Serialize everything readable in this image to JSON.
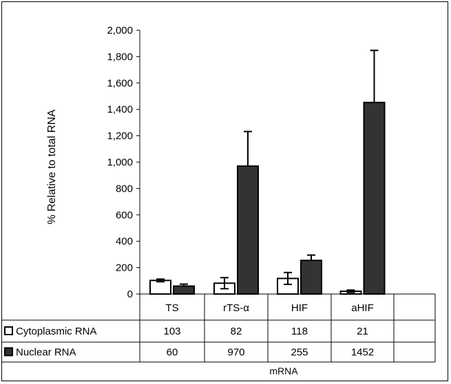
{
  "chart_data": {
    "type": "bar",
    "ylabel": "% Relative to total RNA",
    "xlabel": "mRNA",
    "ylim": [
      0,
      2000
    ],
    "yticks": [
      0,
      200,
      400,
      600,
      800,
      1000,
      1200,
      1400,
      1600,
      1800,
      2000
    ],
    "ytick_labels": [
      "0",
      "200",
      "400",
      "600",
      "800",
      "1,000",
      "1,200",
      "1,400",
      "1,600",
      "1,800",
      "2,000"
    ],
    "categories": [
      "TS",
      "rTS-α",
      "HIF",
      "aHIF"
    ],
    "grid": false,
    "legend": "data-table-left",
    "series": [
      {
        "name": "Cytoplasmic RNA",
        "values": [
          103,
          82,
          118,
          21
        ],
        "errors": [
          10,
          42,
          45,
          9
        ],
        "color": "#ffffff"
      },
      {
        "name": "Nuclear RNA",
        "values": [
          60,
          970,
          255,
          1452
        ],
        "errors": [
          15,
          262,
          40,
          395
        ],
        "color": "#333333"
      }
    ],
    "table": {
      "rows": [
        {
          "label": "Cytoplasmic RNA",
          "values": [
            "103",
            "82",
            "118",
            "21"
          ]
        },
        {
          "label": "Nuclear RNA",
          "values": [
            "60",
            "970",
            "255",
            "1452"
          ]
        }
      ]
    }
  }
}
